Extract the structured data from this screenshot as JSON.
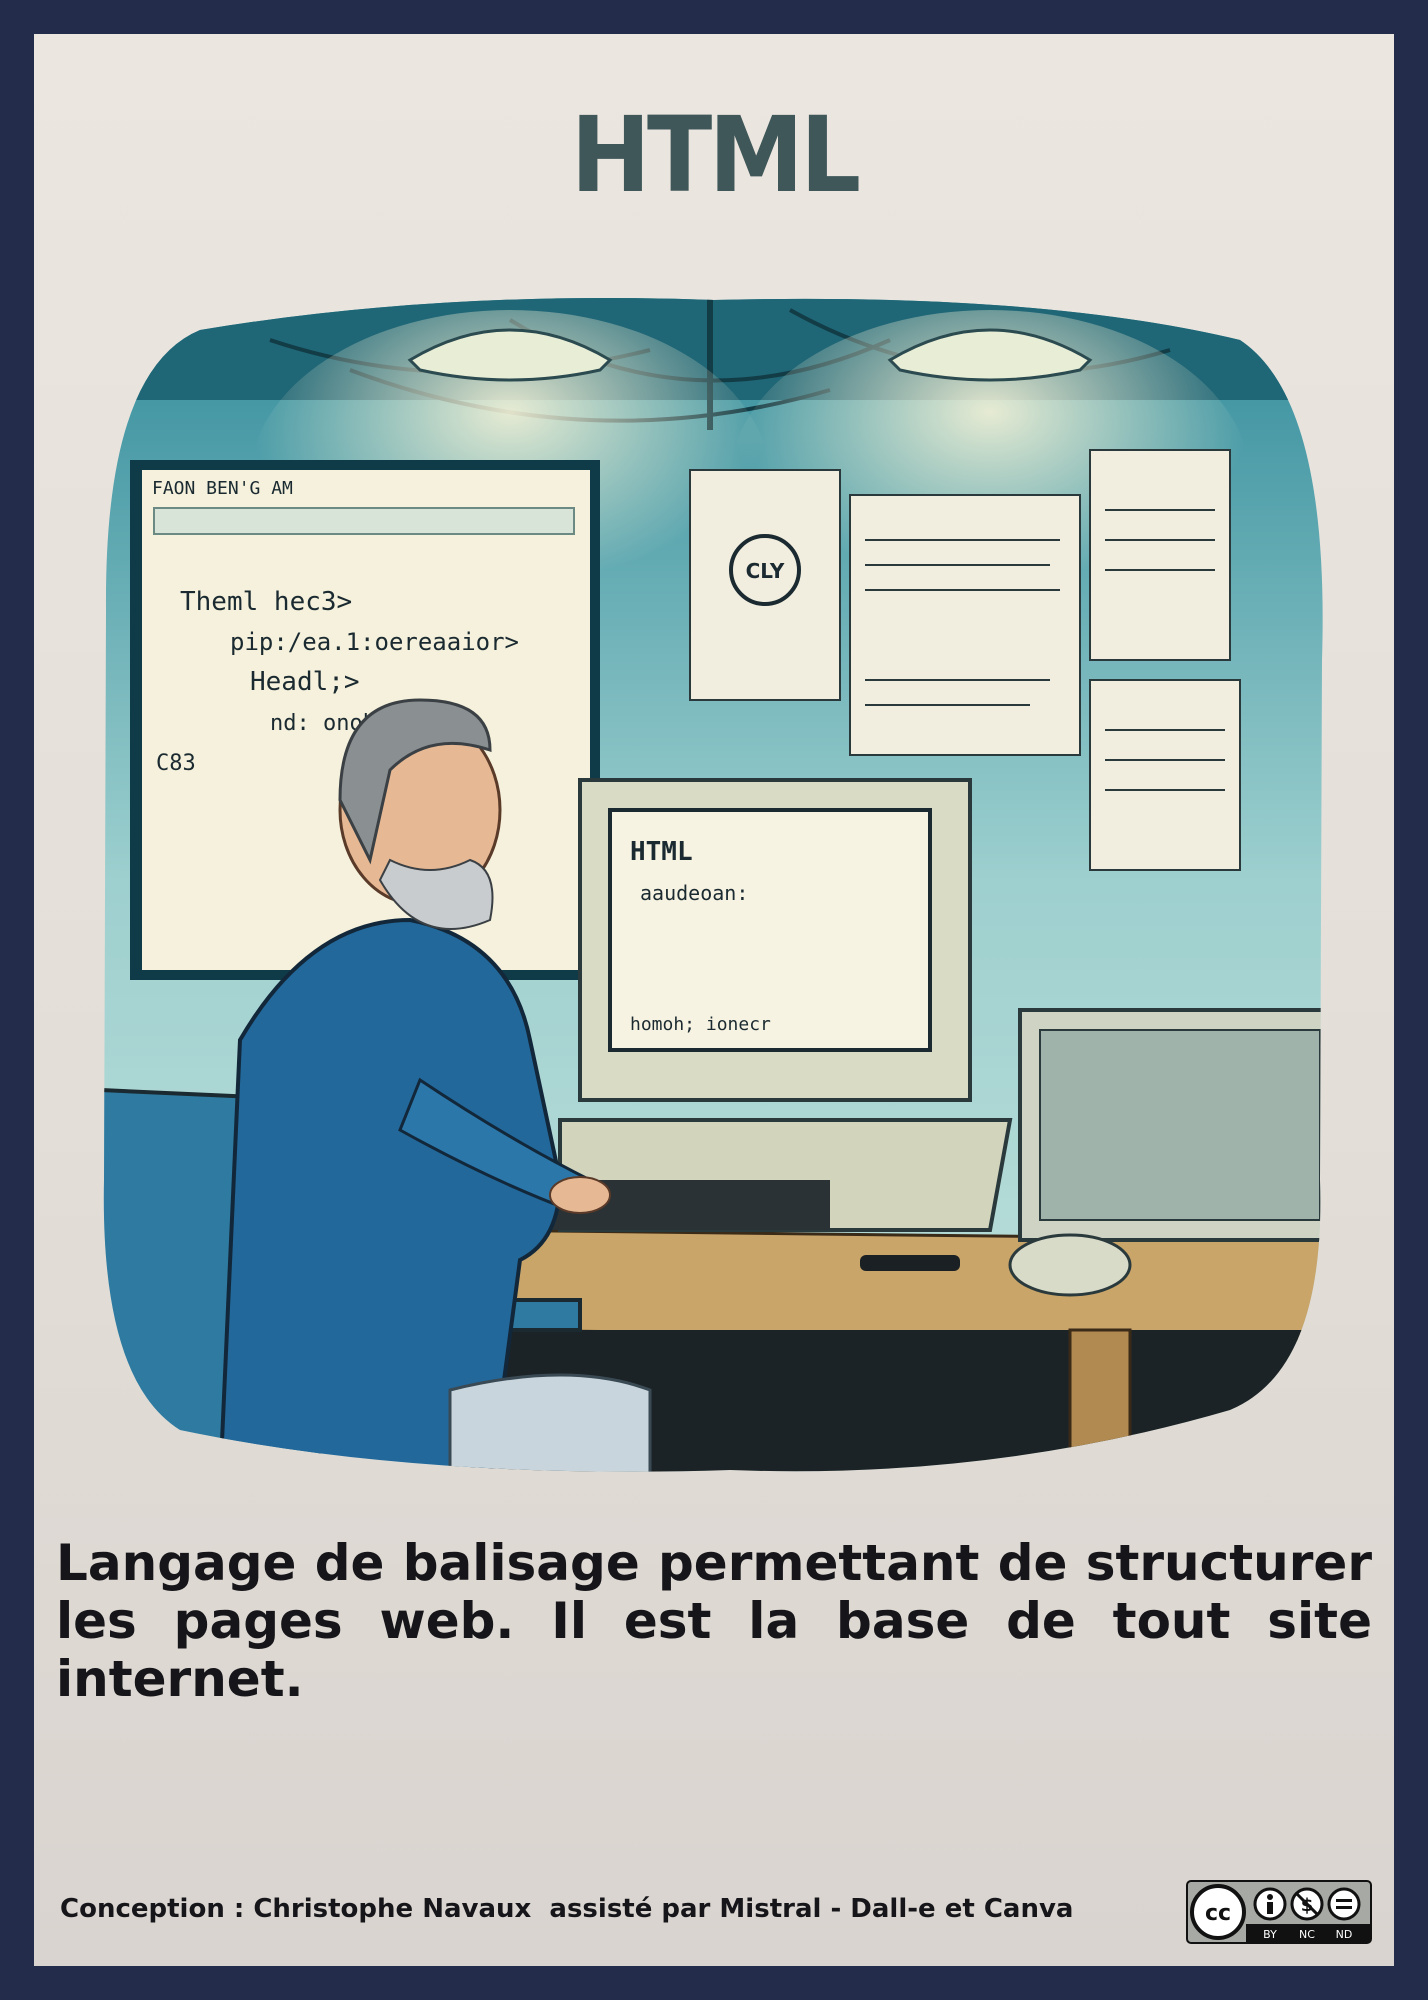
{
  "title": "HTML",
  "illustration": {
    "screen_lines": [
      "FAON BEN'G AM",
      "Theml hec3>",
      "pip:/ea.1:oereaaior>",
      "Headl;>",
      "nd: onobbeb",
      "C83"
    ],
    "monitor_lines": [
      "HTML",
      "aaudeoan:",
      "homoh; ionecr"
    ],
    "seal": "CLY"
  },
  "description": "Langage de balisage permettant de structurer les pages web. Il est la base de tout site internet.",
  "credit": "Conception : Christophe Navaux  assisté par Mistral - Dall-e et Canva",
  "license": {
    "cc": "cc",
    "labels": [
      "BY",
      "NC",
      "ND"
    ]
  }
}
